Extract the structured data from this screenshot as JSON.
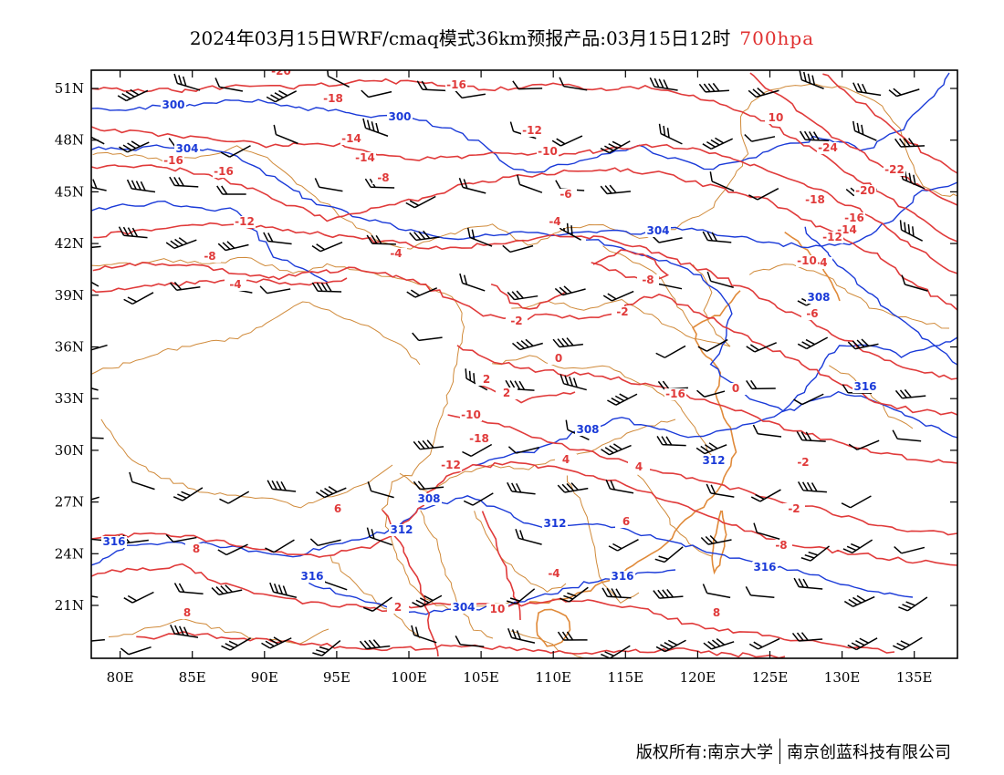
{
  "title": {
    "main": "2024年03月15日WRF/cmaq模式36km预报产品:03月15日12时",
    "level": "700hpa"
  },
  "colors": {
    "temperature": "#e03a3a",
    "height": "#1a3ad8",
    "border": "#d08a3a",
    "coast": "#e08a3a",
    "wind": "#000000",
    "level_text": "#e03030"
  },
  "map_extent": {
    "lon": [
      78,
      138
    ],
    "lat": [
      18,
      52
    ]
  },
  "axes": {
    "lat_ticks": [
      "51N",
      "48N",
      "45N",
      "42N",
      "39N",
      "36N",
      "33N",
      "30N",
      "27N",
      "24N",
      "21N"
    ],
    "lon_ticks": [
      "80E",
      "85E",
      "90E",
      "95E",
      "100E",
      "105E",
      "110E",
      "115E",
      "120E",
      "125E",
      "130E",
      "135E"
    ]
  },
  "temperature_labels": [
    "-20",
    "-18",
    "-16",
    "-16",
    "-16",
    "-14",
    "-14",
    "-12",
    "-12",
    "-10",
    "-8",
    "-8",
    "-6",
    "-4",
    "-4",
    "-4",
    "-4",
    "-2",
    "-2",
    "0",
    "0",
    "2",
    "2",
    "4",
    "4",
    "6",
    "6",
    "8",
    "8",
    "8",
    "10",
    "10",
    "-24",
    "-22",
    "-20",
    "-18",
    "-16",
    "-14",
    "-12",
    "-10",
    "-8",
    "-6",
    "-16",
    "-8",
    "-12",
    "-18",
    "-10",
    "-2",
    "-2",
    "-4",
    "2"
  ],
  "height_labels": [
    "300",
    "300",
    "304",
    "304",
    "308",
    "308",
    "308",
    "312",
    "312",
    "312",
    "316",
    "316",
    "316",
    "316",
    "316",
    "304"
  ],
  "footer": {
    "copyright": "版权所有:南京大学",
    "company": "南京创蓝科技有限公司"
  }
}
